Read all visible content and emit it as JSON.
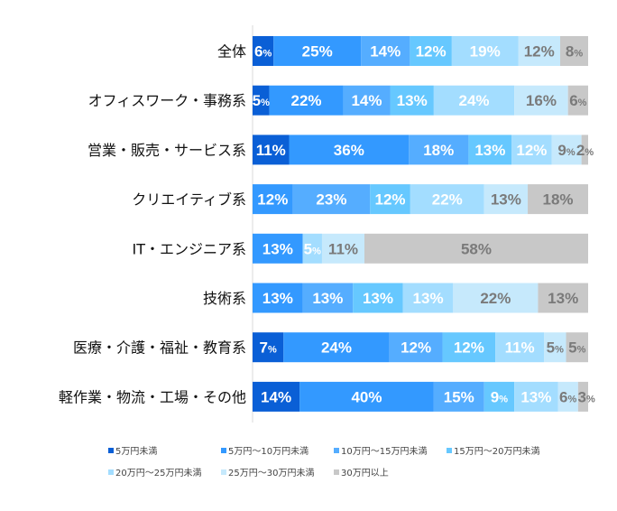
{
  "chart_data": {
    "type": "bar",
    "orientation": "horizontal",
    "stacked": true,
    "categories": [
      "全体",
      "オフィスワーク・事務系",
      "営業・販売・サービス系",
      "クリエイティブ系",
      "IT・エンジニア系",
      "技術系",
      "医療・介護・福祉・教育系",
      "軽作業・物流・工場・その他"
    ],
    "series": [
      {
        "name": "5万円未満",
        "color": "#0a5fd6",
        "values": [
          6,
          5,
          11,
          0,
          0,
          0,
          7,
          14
        ]
      },
      {
        "name": "5万円～10万円未満",
        "color": "#3399ff",
        "values": [
          25,
          22,
          36,
          12,
          13,
          13,
          24,
          40
        ]
      },
      {
        "name": "10万円～15万円未満",
        "color": "#55adff",
        "values": [
          14,
          14,
          18,
          23,
          0,
          13,
          12,
          15
        ]
      },
      {
        "name": "15万円～20万円未満",
        "color": "#66c8ff",
        "values": [
          12,
          13,
          13,
          12,
          0,
          13,
          12,
          9
        ]
      },
      {
        "name": "20万円～25万円未満",
        "color": "#a3ddff",
        "values": [
          19,
          24,
          12,
          22,
          5,
          13,
          11,
          13
        ]
      },
      {
        "name": "25万円～30万円未満",
        "color": "#c6e9fc",
        "values": [
          12,
          16,
          9,
          13,
          11,
          22,
          5,
          6
        ]
      },
      {
        "name": "30万円以上",
        "color": "#c8c8c8",
        "values": [
          8,
          6,
          2,
          18,
          58,
          13,
          5,
          3
        ]
      }
    ],
    "value_suffix": "%",
    "legend_position": "bottom",
    "grid": false
  }
}
